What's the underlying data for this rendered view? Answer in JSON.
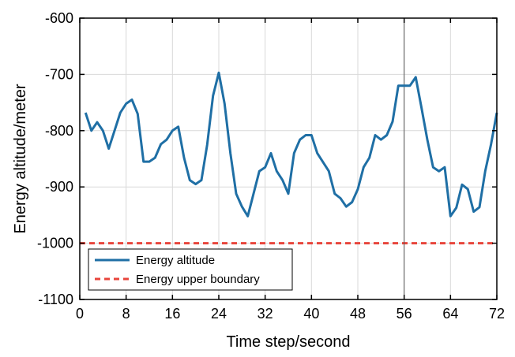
{
  "colors": {
    "series_line": "#1f6fa5",
    "boundary_line": "#e8453c",
    "grid": "#d9d9d9",
    "axis": "#000000",
    "vertical_marker": "#555555"
  },
  "chart_data": {
    "type": "line",
    "xlabel": "Time step/second",
    "ylabel": "Energy altitude/meter",
    "xlim": [
      0,
      72
    ],
    "ylim": [
      -1100,
      -600
    ],
    "x_ticks": [
      0,
      8,
      16,
      24,
      32,
      40,
      48,
      56,
      64,
      72
    ],
    "y_ticks": [
      -1100,
      -1000,
      -900,
      -800,
      -700,
      -600
    ],
    "grid": true,
    "legend_position": "bottom-left",
    "vertical_marker_x": 56,
    "series": [
      {
        "name": "Energy altitude",
        "style": "solid",
        "color": "#1f6fa5",
        "x": [
          1,
          2,
          3,
          4,
          5,
          6,
          7,
          8,
          9,
          10,
          11,
          12,
          13,
          14,
          15,
          16,
          17,
          18,
          19,
          20,
          21,
          22,
          23,
          24,
          25,
          26,
          27,
          28,
          29,
          30,
          31,
          32,
          33,
          34,
          35,
          36,
          37,
          38,
          39,
          40,
          41,
          42,
          43,
          44,
          45,
          46,
          47,
          48,
          49,
          50,
          51,
          52,
          53,
          54,
          55,
          56,
          57,
          58,
          59,
          60,
          61,
          62,
          63,
          64,
          65,
          66,
          67,
          68,
          69,
          70,
          71,
          72
        ],
        "y": [
          -768,
          -800,
          -785,
          -800,
          -832,
          -800,
          -768,
          -752,
          -745,
          -770,
          -855,
          -855,
          -848,
          -824,
          -816,
          -800,
          -793,
          -848,
          -888,
          -895,
          -888,
          -825,
          -738,
          -697,
          -752,
          -840,
          -912,
          -935,
          -952,
          -912,
          -872,
          -865,
          -840,
          -872,
          -888,
          -912,
          -840,
          -816,
          -808,
          -808,
          -840,
          -856,
          -872,
          -912,
          -920,
          -935,
          -927,
          -904,
          -865,
          -848,
          -808,
          -816,
          -808,
          -784,
          -720,
          -720,
          -720,
          -705,
          -760,
          -816,
          -865,
          -872,
          -865,
          -952,
          -937,
          -896,
          -904,
          -944,
          -936,
          -872,
          -824,
          -768
        ]
      },
      {
        "name": "Energy upper boundary",
        "style": "dashed",
        "color": "#e8453c",
        "x": [
          0,
          72
        ],
        "y": [
          -1000,
          -1000
        ]
      }
    ]
  }
}
